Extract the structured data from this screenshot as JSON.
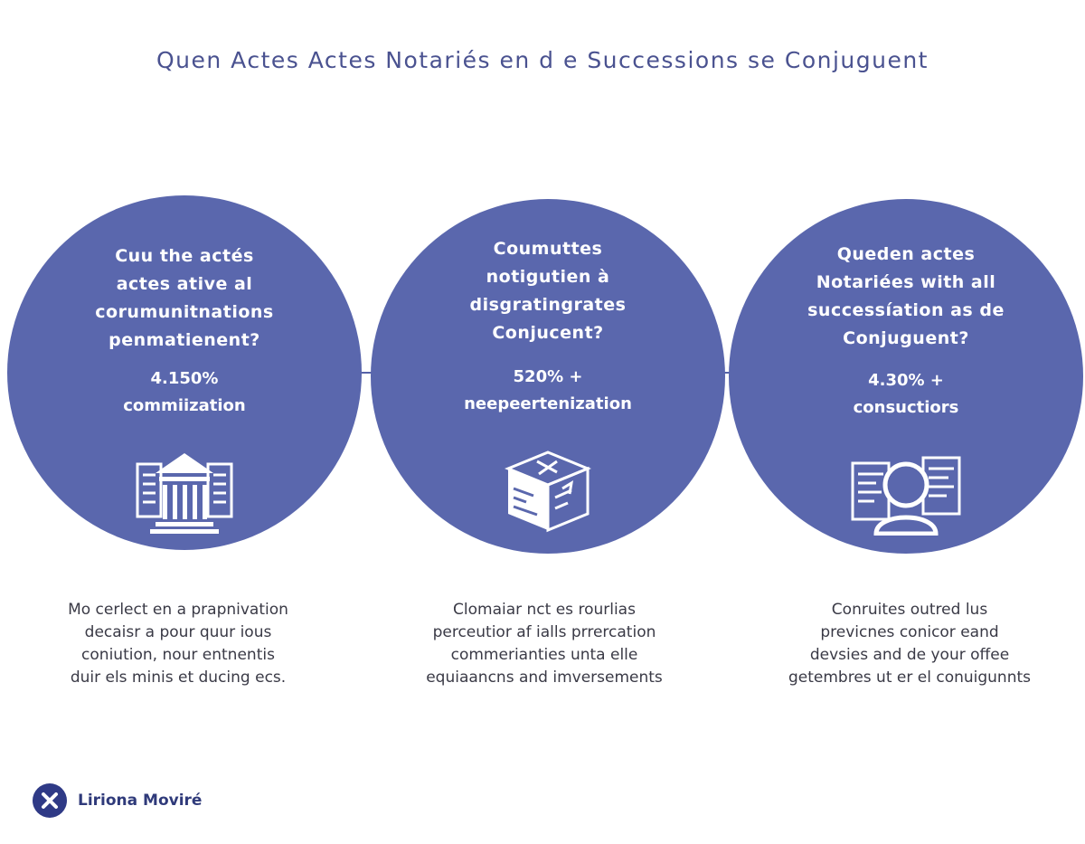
{
  "title": "Quen Actes Actes Notariés en d e Successions se Conjuguent",
  "accent_color": "#5a67ad",
  "circles": [
    {
      "question": "Cuu the actés\nactes ative al\ncorumunitnations\npenmatienent?",
      "stat": "4.150%\ncommiization",
      "icon": "bank-building-icon"
    },
    {
      "question": "Coumuttes\nnotigutien à\ndisgratingrates\nConjucent?",
      "stat": "520% +\nneepeertenization",
      "icon": "document-box-icon"
    },
    {
      "question": "Queden actes\nNotariées with all\nsuccessíation as de\nConjuguent?",
      "stat": "4.30% +\nconsuctiors",
      "icon": "person-documents-icon"
    }
  ],
  "descriptions": [
    "Mo cerlect en a prapnivation\ndecaisr a pour quur ious\nconiution, nour entnentis\nduir els minis et ducing ecs.",
    "Clomaiar nct es rourlias\nperceutior af ialls prrercation\ncommerianties unta elle\nequiaancns and imversements",
    "Conruites outred lus\nprevicnes conicor eand\ndevsies and de your offee\ngetembres ut er el conuigunnts"
  ],
  "brand": {
    "name": "Liriona Moviré",
    "logo_letter": "X"
  }
}
